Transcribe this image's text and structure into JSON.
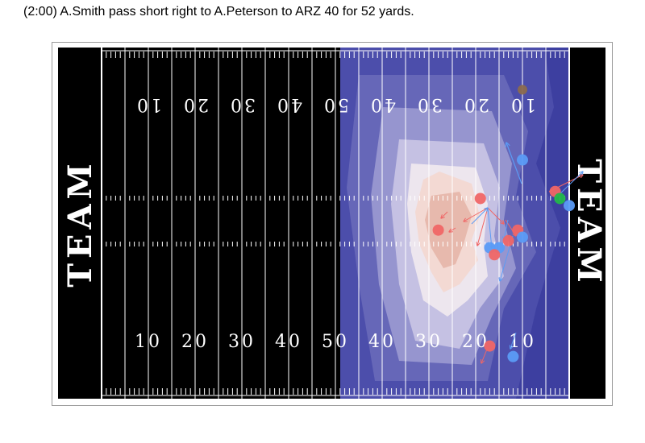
{
  "play": {
    "description": "(2:00) A.Smith pass short right to A.Peterson to ARZ 40 for 52 yards."
  },
  "field": {
    "endzone_left_label": "TEAM",
    "endzone_right_label": "TEAM",
    "yard_numbers": [
      "10",
      "20",
      "30",
      "40",
      "50",
      "40",
      "30",
      "20",
      "10"
    ]
  },
  "colors": {
    "field": "#000000",
    "lines": "#ffffff",
    "heat_low": "#3d3fa0",
    "heat_high": "#e8bdb4",
    "offense": "#f06666",
    "defense": "#5b9bf5",
    "ball": "#22b84a",
    "official": "#8b6a4e"
  },
  "players": [
    {
      "team": "defense",
      "yard_line": 10,
      "lateral": 0.32
    },
    {
      "team": "official",
      "yard_line": 10,
      "lateral": 0.12
    },
    {
      "team": "offense",
      "yard_line": 3,
      "lateral": 0.41
    },
    {
      "team": "ball",
      "yard_line": 2,
      "lateral": 0.43
    },
    {
      "team": "defense",
      "yard_line": 0,
      "lateral": 0.45
    },
    {
      "team": "offense",
      "yard_line": 19,
      "lateral": 0.43
    },
    {
      "team": "offense",
      "yard_line": 28,
      "lateral": 0.52
    },
    {
      "team": "offense",
      "yard_line": 11,
      "lateral": 0.52
    },
    {
      "team": "offense",
      "yard_line": 13,
      "lateral": 0.55
    },
    {
      "team": "defense",
      "yard_line": 10,
      "lateral": 0.54
    },
    {
      "team": "defense",
      "yard_line": 15,
      "lateral": 0.57
    },
    {
      "team": "defense",
      "yard_line": 17,
      "lateral": 0.57
    },
    {
      "team": "offense",
      "yard_line": 16,
      "lateral": 0.59
    },
    {
      "team": "offense",
      "yard_line": 17,
      "lateral": 0.85
    },
    {
      "team": "defense",
      "yard_line": 12,
      "lateral": 0.88
    }
  ]
}
